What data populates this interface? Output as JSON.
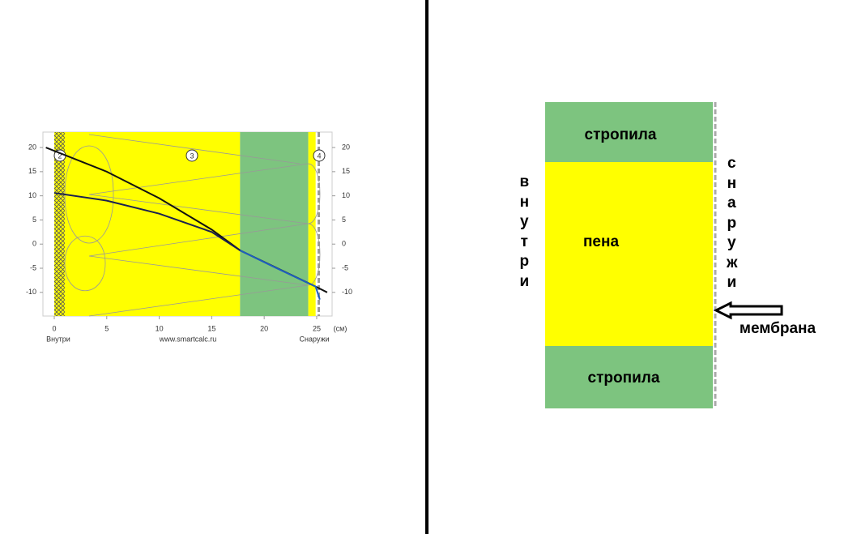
{
  "chart_data": {
    "type": "line",
    "x_label": "(см)",
    "left_label": "Внутри",
    "source": "www.smartcalc.ru",
    "right_label": "Снаружи",
    "markers": [
      "2",
      "3",
      "4"
    ],
    "xlim": [
      -1.08,
      26.47
    ],
    "ylim": [
      -14.9,
      23.2
    ],
    "xticks": [
      0,
      5,
      10,
      15,
      20,
      25
    ],
    "yticks": [
      20,
      15,
      10,
      5,
      0,
      -5,
      -10
    ],
    "layers": [
      {
        "start": 0,
        "end": 1,
        "color": "#ffff00",
        "hatch": true
      },
      {
        "start": 1,
        "end": 17.7,
        "color": "#ffff00"
      },
      {
        "start": 17.7,
        "end": 24.2,
        "color": "#7dc47f"
      },
      {
        "start": 24.2,
        "end": 24.9,
        "color": "#ffff00"
      }
    ],
    "series": [
      {
        "color": "#111111",
        "x": [
          -0.8,
          5,
          10,
          15,
          17.7,
          24.9,
          26
        ],
        "values": [
          20,
          15,
          9.5,
          3,
          -1.3,
          -8.8,
          -10
        ]
      },
      {
        "color": "#1a2050",
        "x": [
          0,
          5,
          10,
          15,
          17.7
        ],
        "values": [
          10.6,
          9,
          6.3,
          2.5,
          -1.3
        ]
      },
      {
        "color": "#1f5fc0",
        "x": [
          17.7,
          21,
          24.9,
          25.3
        ],
        "values": [
          -1.3,
          -4.8,
          -8.8,
          -11.5
        ]
      }
    ]
  },
  "diagram": {
    "top": "стропила",
    "middle": "пена",
    "bottom": "стропила",
    "left": "внутри",
    "right": "снаружи",
    "membrane": "мембрана"
  }
}
